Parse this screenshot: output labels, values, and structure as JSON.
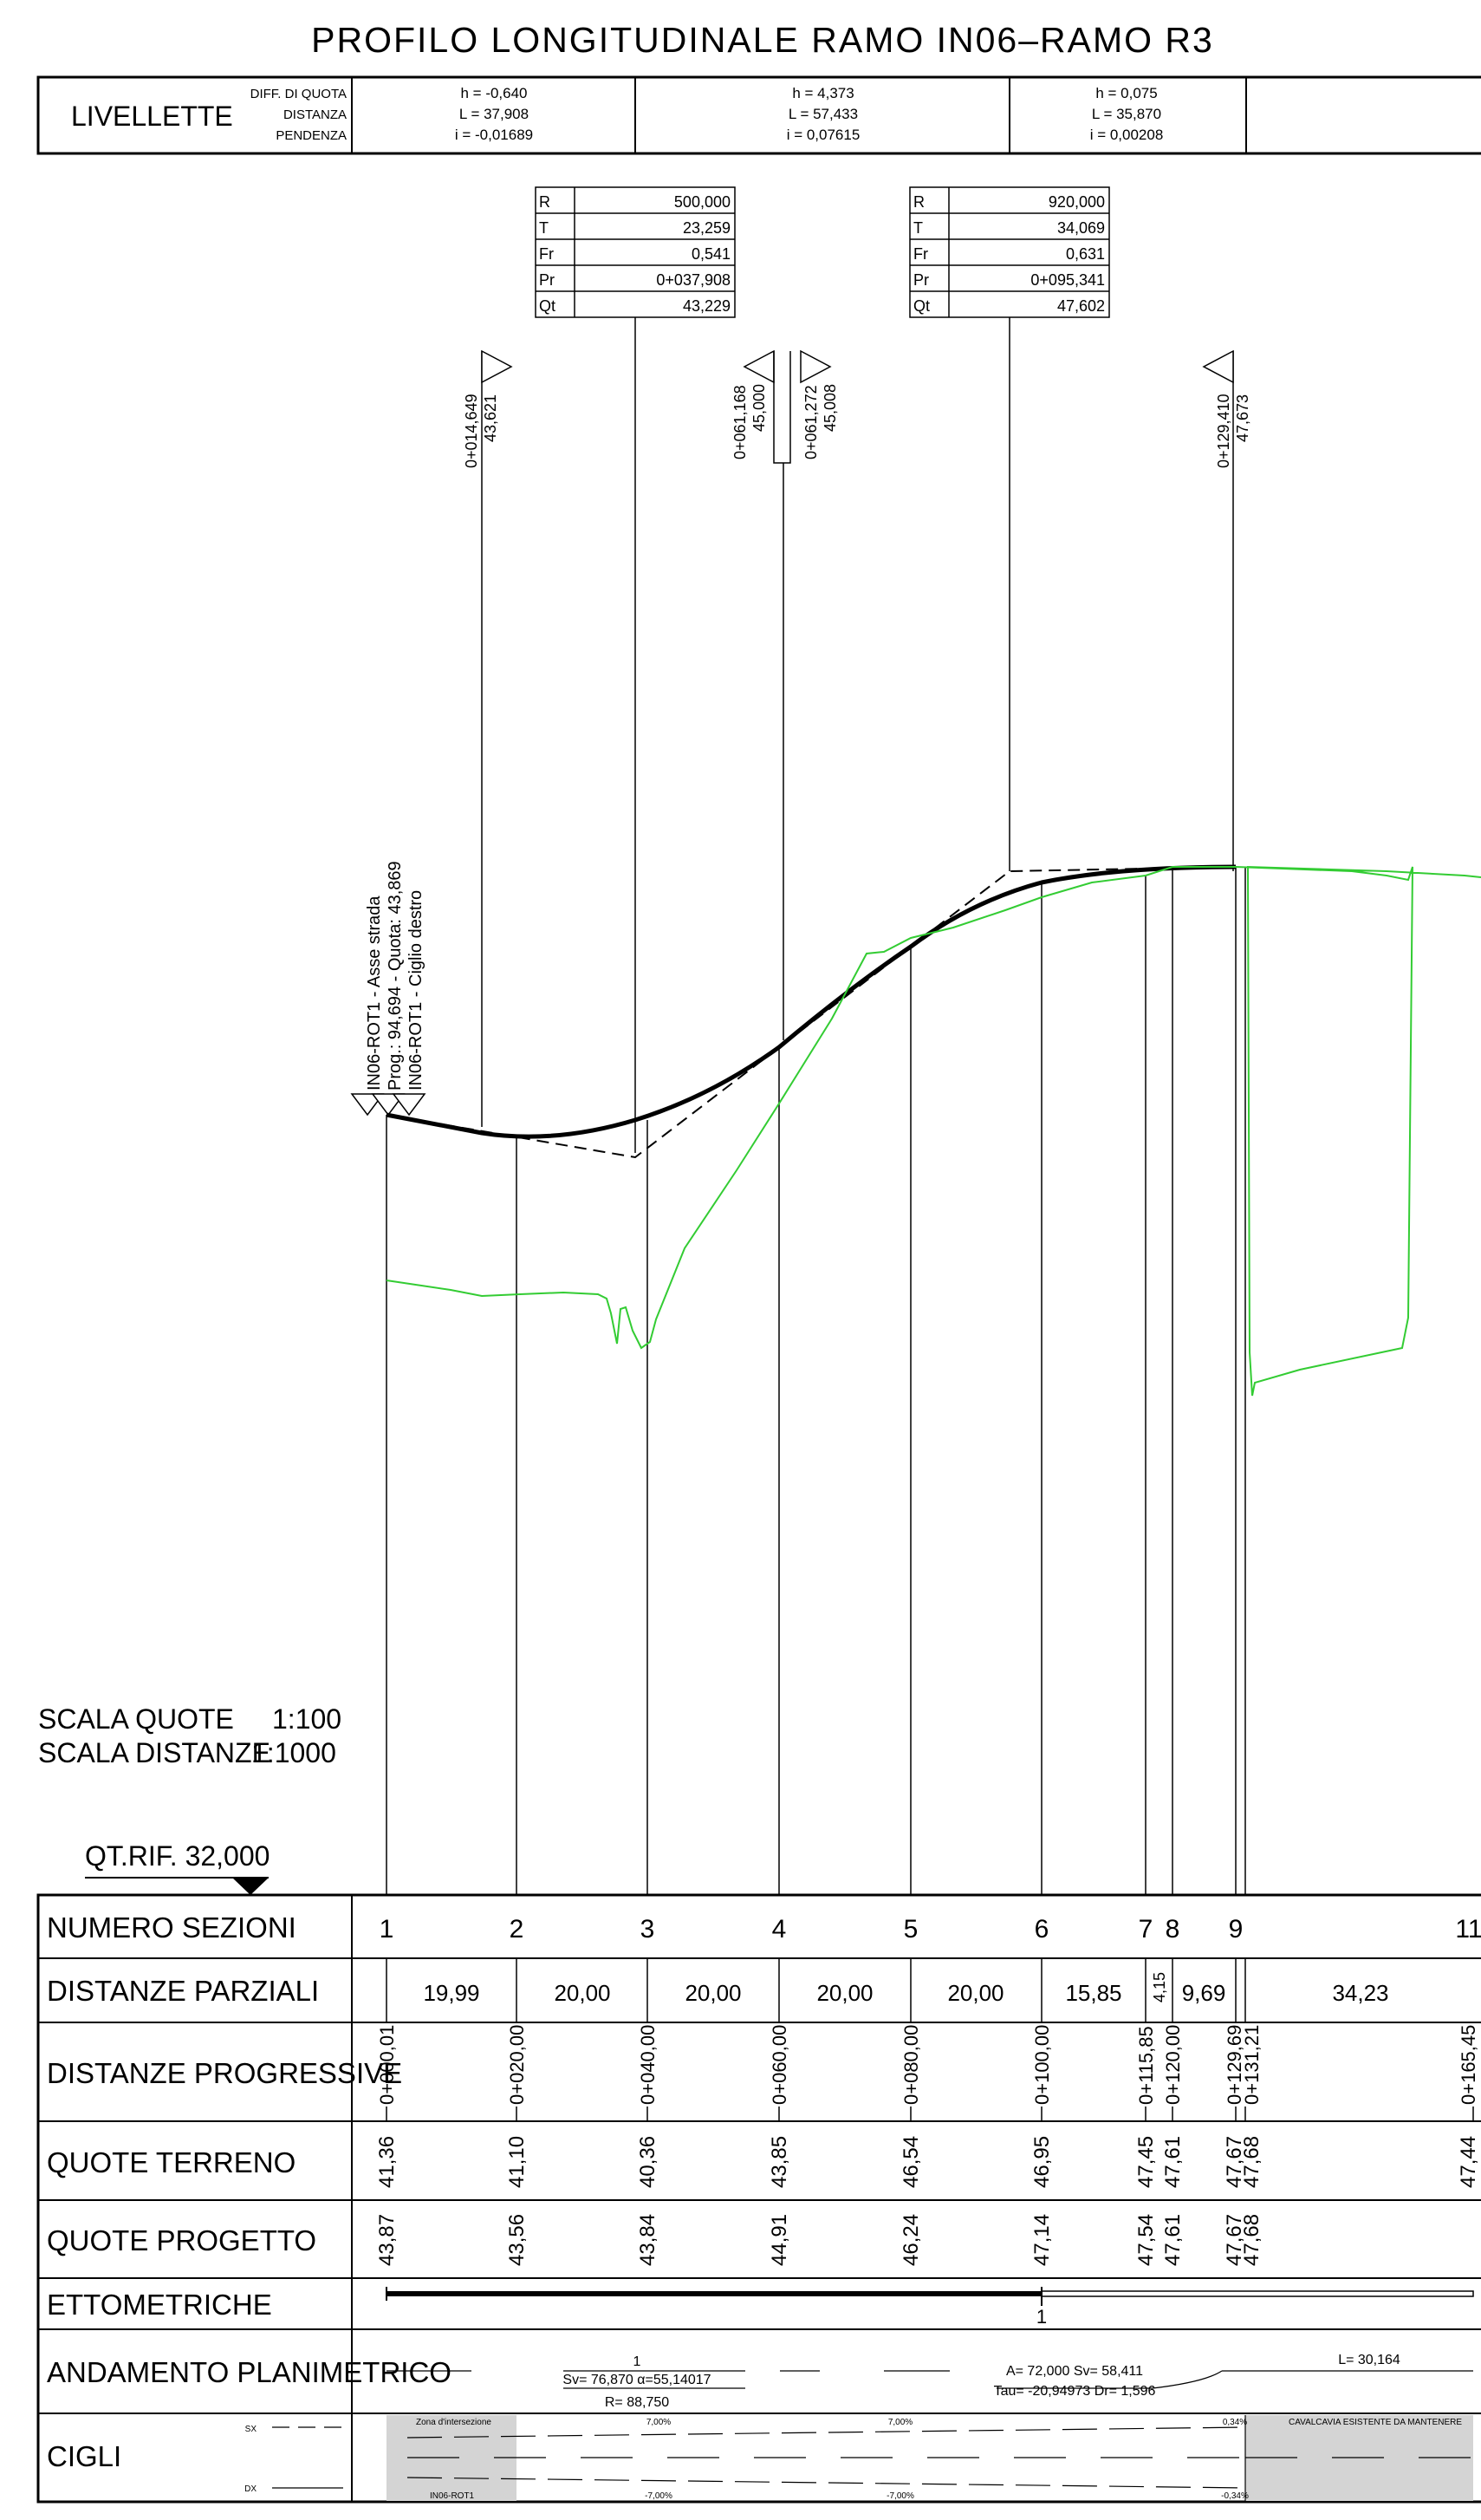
{
  "title": "PROFILO LONGITUDINALE RAMO IN06–RAMO R3",
  "livellette": {
    "label": "LIVELLETTE",
    "sublabels": [
      "DIFF. DI QUOTA",
      "DISTANZA",
      "PENDENZA"
    ],
    "segments": [
      {
        "h": "h = -0,640",
        "l": "L = 37,908",
        "i": "i = -0,01689"
      },
      {
        "h": "h = 4,373",
        "l": "L = 57,433",
        "i": "i = 0,07615"
      },
      {
        "h": "h = 0,075",
        "l": "L = 35,870",
        "i": "i = 0,00208"
      }
    ]
  },
  "vertical_curves": [
    {
      "rows": [
        [
          "R",
          "500,000"
        ],
        [
          "T",
          "23,259"
        ],
        [
          "Fr",
          "0,541"
        ],
        [
          "Pr",
          "0+037,908"
        ],
        [
          "Qt",
          "43,229"
        ]
      ]
    },
    {
      "rows": [
        [
          "R",
          "920,000"
        ],
        [
          "T",
          "34,069"
        ],
        [
          "Fr",
          "0,631"
        ],
        [
          "Pr",
          "0+095,341"
        ],
        [
          "Qt",
          "47,602"
        ]
      ]
    }
  ],
  "markers": [
    {
      "prog": "0+014,649",
      "quota": "43,621"
    },
    {
      "prog": "0+061,168",
      "quota": "45,000"
    },
    {
      "prog": "0+061,272",
      "quota": "45,008"
    },
    {
      "prog": "0+129,410",
      "quota": "47,673"
    }
  ],
  "start_annotation": [
    "IN06-ROT1 - Asse strada",
    "Prog.: 94,694 - Quota: 43,869",
    "IN06-ROT1 - Ciglio destro"
  ],
  "scale": {
    "quote_label": "SCALA QUOTE",
    "quote_value": "1:100",
    "distanze_label": "SCALA DISTANZE",
    "distanze_value": "1:1000",
    "qt_rif": "QT.RIF. 32,000"
  },
  "table": {
    "row_labels": [
      "NUMERO SEZIONI",
      "DISTANZE PARZIALI",
      "DISTANZE PROGRESSIVE",
      "QUOTE TERRENO",
      "QUOTE PROGETTO",
      "ETTOMETRICHE",
      "ANDAMENTO PLANIMETRICO",
      "CIGLI"
    ],
    "sections": [
      "1",
      "2",
      "3",
      "4",
      "5",
      "6",
      "7",
      "8",
      "9",
      "11"
    ],
    "partial_distances": [
      "19,99",
      "20,00",
      "20,00",
      "20,00",
      "20,00",
      "15,85",
      "4,15",
      "9,69",
      "34,23"
    ],
    "progressive": [
      "0+000,01",
      "0+020,00",
      "0+040,00",
      "0+060,00",
      "0+080,00",
      "0+100,00",
      "0+115,85",
      "0+120,00",
      "0+129,69",
      "0+131,21",
      "0+165,45"
    ],
    "terrain": [
      "41,36",
      "41,10",
      "40,36",
      "43,85",
      "46,54",
      "46,95",
      "47,45",
      "47,61",
      "47,67",
      "47,68",
      "47,44"
    ],
    "project": [
      "43,87",
      "43,56",
      "43,84",
      "44,91",
      "46,24",
      "47,14",
      "47,54",
      "47,61",
      "47,67",
      "47,68"
    ],
    "ettometriche_mark": "1",
    "planimetrico": {
      "curve1_num": "1",
      "curve1_params": "Sv= 76,870  α=55,14017",
      "curve1_radius": "R= 88,750",
      "clothoid_a": "A= 72,000  Sv= 58,411",
      "clothoid_tau": "Tau= -20,94973  Dr= 1,596",
      "right_l": "L= 30,164"
    },
    "cigli": {
      "sx": "SX",
      "dx": "DX",
      "zone_left": "Zona d'intersezione",
      "zone_left_bottom": "IN06-ROT1",
      "zone_right": "CAVALCAVIA ESISTENTE DA MANTENERE",
      "pct_top_1": "7,00%",
      "pct_top_2": "7,00%",
      "pct_top_3": "0,34%",
      "pct_bot_1": "-7,00%",
      "pct_bot_2": "-7,00%",
      "pct_bot_3": "-0,34%"
    }
  },
  "colors": {
    "ink": "#000000",
    "terrain": "#33cc33",
    "zone_fill": "#d4d4d4"
  }
}
